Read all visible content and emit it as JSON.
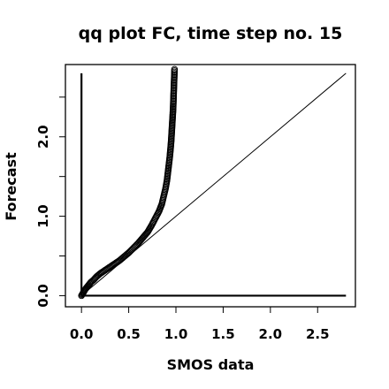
{
  "chart_data": {
    "type": "scatter",
    "title": "qq plot FC, time step no. 15",
    "xlabel": "SMOS data",
    "ylabel": "Forecast",
    "xlim": [
      -0.17,
      2.9
    ],
    "ylim": [
      -0.14,
      2.91
    ],
    "x_ticks": [
      0.0,
      0.5,
      1.0,
      1.5,
      2.0,
      2.5
    ],
    "x_tick_labels": [
      "0.0",
      "0.5",
      "1.0",
      "1.5",
      "2.0",
      "2.5"
    ],
    "y_ticks": [
      0.0,
      0.5,
      1.0,
      1.5,
      2.0,
      2.5
    ],
    "y_tick_labels": [
      "0.0",
      "",
      "1.0",
      "",
      "2.0",
      ""
    ],
    "grid": false,
    "reference_lines": [
      {
        "name": "identity",
        "x": [
          0.0,
          2.8
        ],
        "y": [
          0.0,
          2.8
        ]
      },
      {
        "name": "vertical",
        "x": [
          0.0,
          0.0
        ],
        "y": [
          0.0,
          2.8
        ]
      },
      {
        "name": "horizontal",
        "x": [
          0.0,
          2.8
        ],
        "y": [
          0.0,
          0.0
        ]
      }
    ],
    "series": [
      {
        "points": [
          [
            0.0,
            0.0
          ],
          [
            0.01,
            0.02
          ],
          [
            0.02,
            0.04
          ],
          [
            0.03,
            0.06
          ],
          [
            0.04,
            0.08
          ],
          [
            0.06,
            0.11
          ],
          [
            0.08,
            0.14
          ],
          [
            0.1,
            0.17
          ],
          [
            0.13,
            0.2
          ],
          [
            0.16,
            0.24
          ],
          [
            0.2,
            0.28
          ],
          [
            0.25,
            0.32
          ],
          [
            0.3,
            0.36
          ],
          [
            0.35,
            0.4
          ],
          [
            0.4,
            0.44
          ],
          [
            0.45,
            0.49
          ],
          [
            0.5,
            0.54
          ],
          [
            0.55,
            0.6
          ],
          [
            0.6,
            0.66
          ],
          [
            0.65,
            0.73
          ],
          [
            0.7,
            0.8
          ],
          [
            0.74,
            0.88
          ],
          [
            0.78,
            0.97
          ],
          [
            0.82,
            1.06
          ],
          [
            0.85,
            1.15
          ],
          [
            0.87,
            1.25
          ],
          [
            0.89,
            1.35
          ],
          [
            0.905,
            1.45
          ],
          [
            0.915,
            1.55
          ],
          [
            0.925,
            1.65
          ],
          [
            0.935,
            1.75
          ],
          [
            0.943,
            1.85
          ],
          [
            0.95,
            1.95
          ],
          [
            0.955,
            2.05
          ],
          [
            0.96,
            2.15
          ],
          [
            0.965,
            2.25
          ],
          [
            0.97,
            2.35
          ],
          [
            0.973,
            2.45
          ],
          [
            0.976,
            2.55
          ],
          [
            0.979,
            2.65
          ],
          [
            0.982,
            2.75
          ],
          [
            0.985,
            2.85
          ]
        ]
      }
    ]
  }
}
